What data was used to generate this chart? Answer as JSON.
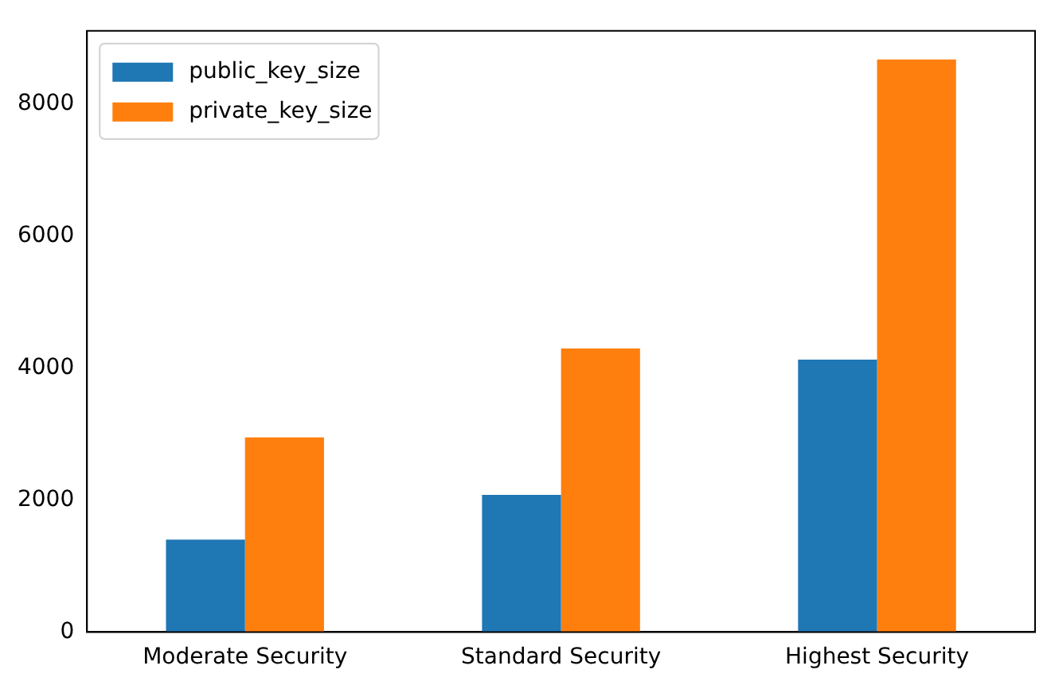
{
  "chart_data": {
    "type": "bar",
    "categories": [
      "Moderate Security",
      "Standard Security",
      "Highest Security"
    ],
    "series": [
      {
        "name": "public_key_size",
        "color": "#1f77b4",
        "values": [
          1400,
          2080,
          4130
        ]
      },
      {
        "name": "private_key_size",
        "color": "#ff7f0e",
        "values": [
          2950,
          4300,
          8680
        ]
      }
    ],
    "ylim": [
      0,
      9114
    ],
    "yticks": [
      0,
      2000,
      4000,
      6000,
      8000
    ],
    "grid": false,
    "legend": "top left"
  }
}
